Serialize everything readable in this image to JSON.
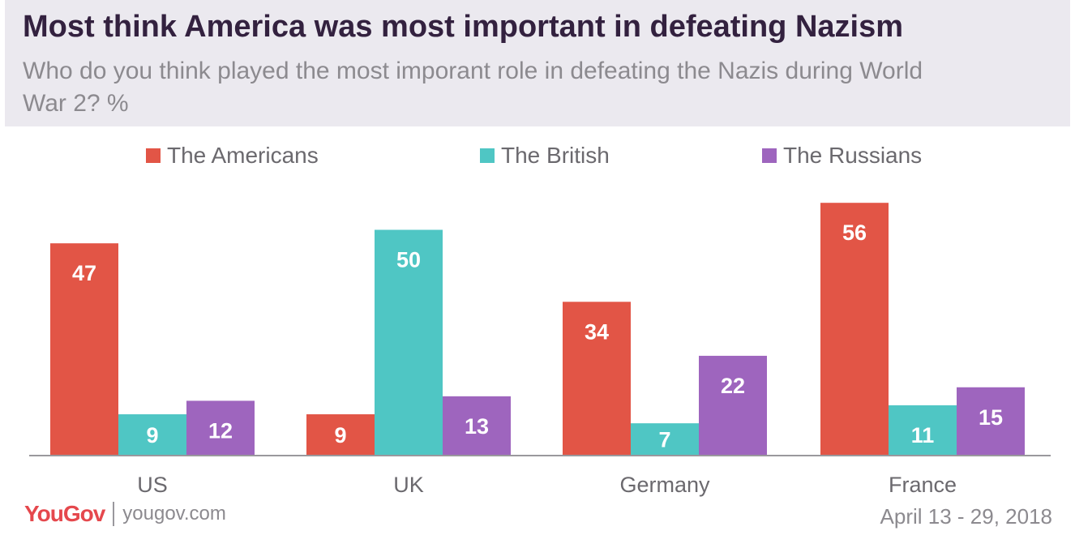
{
  "title": "Most think America was most important in defeating Nazism",
  "subtitle": "Who do you think played the most imporant role in defeating the Nazis during World War 2? %",
  "footer": {
    "logo": "YouGov",
    "logo_you": "You",
    "logo_gov": "Gov",
    "site": "yougov.com",
    "date": "April 13 - 29, 2018"
  },
  "chart_data": {
    "type": "bar",
    "categories": [
      "US",
      "UK",
      "Germany",
      "France"
    ],
    "series": [
      {
        "name": "The Americans",
        "color": "#e25546",
        "values": [
          47,
          9,
          34,
          56
        ]
      },
      {
        "name": "The British",
        "color": "#4fc6c4",
        "values": [
          9,
          50,
          7,
          11
        ]
      },
      {
        "name": "The Russians",
        "color": "#9e65be",
        "values": [
          12,
          13,
          22,
          15
        ]
      }
    ],
    "ylim": [
      0,
      60
    ],
    "grid": false,
    "legend_position": "top",
    "data_labels": true
  }
}
